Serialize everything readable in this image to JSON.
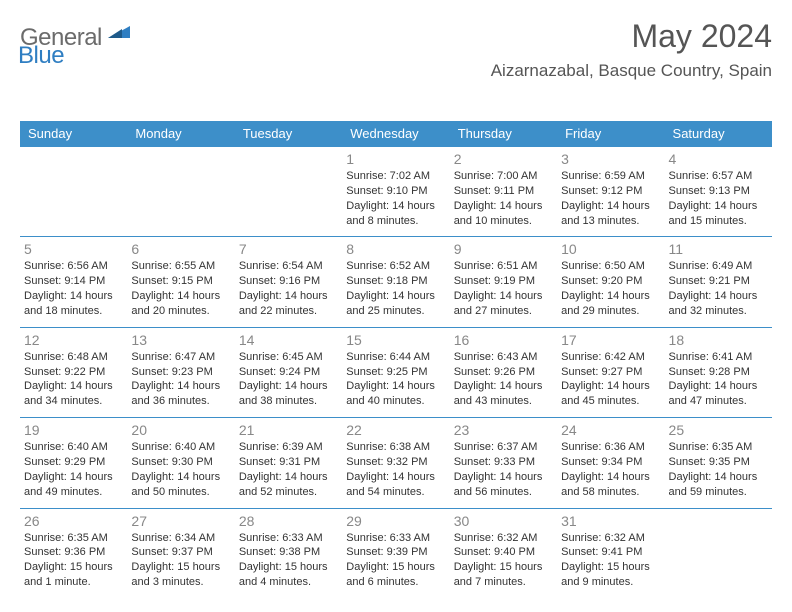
{
  "logo": {
    "general": "General",
    "blue": "Blue"
  },
  "title": "May 2024",
  "location": "Aizarnazabal, Basque Country, Spain",
  "colors": {
    "header_bg": "#3d8fc9",
    "header_text": "#ffffff",
    "border": "#3d8fc9",
    "daynum": "#888888",
    "body_text": "#333333",
    "logo_gray": "#6b6b6b",
    "logo_blue": "#2f7ec2",
    "background": "#ffffff"
  },
  "weekdays": [
    "Sunday",
    "Monday",
    "Tuesday",
    "Wednesday",
    "Thursday",
    "Friday",
    "Saturday"
  ],
  "weeks": [
    [
      null,
      null,
      null,
      {
        "n": "1",
        "sr": "Sunrise: 7:02 AM",
        "ss": "Sunset: 9:10 PM",
        "d1": "Daylight: 14 hours",
        "d2": "and 8 minutes."
      },
      {
        "n": "2",
        "sr": "Sunrise: 7:00 AM",
        "ss": "Sunset: 9:11 PM",
        "d1": "Daylight: 14 hours",
        "d2": "and 10 minutes."
      },
      {
        "n": "3",
        "sr": "Sunrise: 6:59 AM",
        "ss": "Sunset: 9:12 PM",
        "d1": "Daylight: 14 hours",
        "d2": "and 13 minutes."
      },
      {
        "n": "4",
        "sr": "Sunrise: 6:57 AM",
        "ss": "Sunset: 9:13 PM",
        "d1": "Daylight: 14 hours",
        "d2": "and 15 minutes."
      }
    ],
    [
      {
        "n": "5",
        "sr": "Sunrise: 6:56 AM",
        "ss": "Sunset: 9:14 PM",
        "d1": "Daylight: 14 hours",
        "d2": "and 18 minutes."
      },
      {
        "n": "6",
        "sr": "Sunrise: 6:55 AM",
        "ss": "Sunset: 9:15 PM",
        "d1": "Daylight: 14 hours",
        "d2": "and 20 minutes."
      },
      {
        "n": "7",
        "sr": "Sunrise: 6:54 AM",
        "ss": "Sunset: 9:16 PM",
        "d1": "Daylight: 14 hours",
        "d2": "and 22 minutes."
      },
      {
        "n": "8",
        "sr": "Sunrise: 6:52 AM",
        "ss": "Sunset: 9:18 PM",
        "d1": "Daylight: 14 hours",
        "d2": "and 25 minutes."
      },
      {
        "n": "9",
        "sr": "Sunrise: 6:51 AM",
        "ss": "Sunset: 9:19 PM",
        "d1": "Daylight: 14 hours",
        "d2": "and 27 minutes."
      },
      {
        "n": "10",
        "sr": "Sunrise: 6:50 AM",
        "ss": "Sunset: 9:20 PM",
        "d1": "Daylight: 14 hours",
        "d2": "and 29 minutes."
      },
      {
        "n": "11",
        "sr": "Sunrise: 6:49 AM",
        "ss": "Sunset: 9:21 PM",
        "d1": "Daylight: 14 hours",
        "d2": "and 32 minutes."
      }
    ],
    [
      {
        "n": "12",
        "sr": "Sunrise: 6:48 AM",
        "ss": "Sunset: 9:22 PM",
        "d1": "Daylight: 14 hours",
        "d2": "and 34 minutes."
      },
      {
        "n": "13",
        "sr": "Sunrise: 6:47 AM",
        "ss": "Sunset: 9:23 PM",
        "d1": "Daylight: 14 hours",
        "d2": "and 36 minutes."
      },
      {
        "n": "14",
        "sr": "Sunrise: 6:45 AM",
        "ss": "Sunset: 9:24 PM",
        "d1": "Daylight: 14 hours",
        "d2": "and 38 minutes."
      },
      {
        "n": "15",
        "sr": "Sunrise: 6:44 AM",
        "ss": "Sunset: 9:25 PM",
        "d1": "Daylight: 14 hours",
        "d2": "and 40 minutes."
      },
      {
        "n": "16",
        "sr": "Sunrise: 6:43 AM",
        "ss": "Sunset: 9:26 PM",
        "d1": "Daylight: 14 hours",
        "d2": "and 43 minutes."
      },
      {
        "n": "17",
        "sr": "Sunrise: 6:42 AM",
        "ss": "Sunset: 9:27 PM",
        "d1": "Daylight: 14 hours",
        "d2": "and 45 minutes."
      },
      {
        "n": "18",
        "sr": "Sunrise: 6:41 AM",
        "ss": "Sunset: 9:28 PM",
        "d1": "Daylight: 14 hours",
        "d2": "and 47 minutes."
      }
    ],
    [
      {
        "n": "19",
        "sr": "Sunrise: 6:40 AM",
        "ss": "Sunset: 9:29 PM",
        "d1": "Daylight: 14 hours",
        "d2": "and 49 minutes."
      },
      {
        "n": "20",
        "sr": "Sunrise: 6:40 AM",
        "ss": "Sunset: 9:30 PM",
        "d1": "Daylight: 14 hours",
        "d2": "and 50 minutes."
      },
      {
        "n": "21",
        "sr": "Sunrise: 6:39 AM",
        "ss": "Sunset: 9:31 PM",
        "d1": "Daylight: 14 hours",
        "d2": "and 52 minutes."
      },
      {
        "n": "22",
        "sr": "Sunrise: 6:38 AM",
        "ss": "Sunset: 9:32 PM",
        "d1": "Daylight: 14 hours",
        "d2": "and 54 minutes."
      },
      {
        "n": "23",
        "sr": "Sunrise: 6:37 AM",
        "ss": "Sunset: 9:33 PM",
        "d1": "Daylight: 14 hours",
        "d2": "and 56 minutes."
      },
      {
        "n": "24",
        "sr": "Sunrise: 6:36 AM",
        "ss": "Sunset: 9:34 PM",
        "d1": "Daylight: 14 hours",
        "d2": "and 58 minutes."
      },
      {
        "n": "25",
        "sr": "Sunrise: 6:35 AM",
        "ss": "Sunset: 9:35 PM",
        "d1": "Daylight: 14 hours",
        "d2": "and 59 minutes."
      }
    ],
    [
      {
        "n": "26",
        "sr": "Sunrise: 6:35 AM",
        "ss": "Sunset: 9:36 PM",
        "d1": "Daylight: 15 hours",
        "d2": "and 1 minute."
      },
      {
        "n": "27",
        "sr": "Sunrise: 6:34 AM",
        "ss": "Sunset: 9:37 PM",
        "d1": "Daylight: 15 hours",
        "d2": "and 3 minutes."
      },
      {
        "n": "28",
        "sr": "Sunrise: 6:33 AM",
        "ss": "Sunset: 9:38 PM",
        "d1": "Daylight: 15 hours",
        "d2": "and 4 minutes."
      },
      {
        "n": "29",
        "sr": "Sunrise: 6:33 AM",
        "ss": "Sunset: 9:39 PM",
        "d1": "Daylight: 15 hours",
        "d2": "and 6 minutes."
      },
      {
        "n": "30",
        "sr": "Sunrise: 6:32 AM",
        "ss": "Sunset: 9:40 PM",
        "d1": "Daylight: 15 hours",
        "d2": "and 7 minutes."
      },
      {
        "n": "31",
        "sr": "Sunrise: 6:32 AM",
        "ss": "Sunset: 9:41 PM",
        "d1": "Daylight: 15 hours",
        "d2": "and 9 minutes."
      },
      null
    ]
  ]
}
